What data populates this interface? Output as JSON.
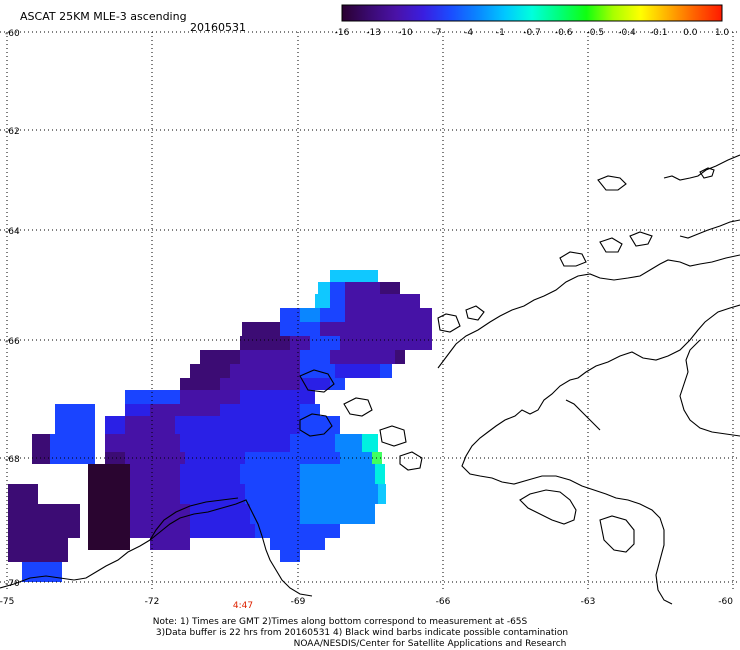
{
  "header": {
    "title": "ASCAT 25KM MLE-3 ascending",
    "date": "20160531"
  },
  "colorbar": {
    "tick_labels": [
      "-16",
      "-13",
      "-10",
      "-7",
      "-4",
      "-1",
      "-0.7",
      "-0.6",
      "-0.5",
      "-0.4",
      "-0.1",
      "0.0",
      "1.0"
    ],
    "stops": [
      "#2a0030",
      "#3a0a70",
      "#4a12a8",
      "#3a1ee0",
      "#1b4cff",
      "#0a86ff",
      "#00c8ff",
      "#00ffdc",
      "#00ff7c",
      "#10ff10",
      "#a8ff00",
      "#ffff00",
      "#ffb000",
      "#ff6000",
      "#ff1a00"
    ]
  },
  "map": {
    "lat_labels": [
      "-60",
      "-62",
      "-64",
      "-66",
      "-68",
      "-70"
    ],
    "lon_labels": [
      "-75",
      "-72",
      "-69",
      "-66",
      "-63",
      "-60"
    ],
    "time_label": "4:47",
    "time_color": "#dd2200"
  },
  "notes": {
    "line1": "Note: 1) Times are GMT 2)Times along bottom correspond to measurement at -65S",
    "line2": "3)Data buffer is 22 hrs from 20160531 4) Black wind barbs indicate possible contamination",
    "line3": "NOAA/NESDIS/Center for Satellite Applications and Research"
  }
}
